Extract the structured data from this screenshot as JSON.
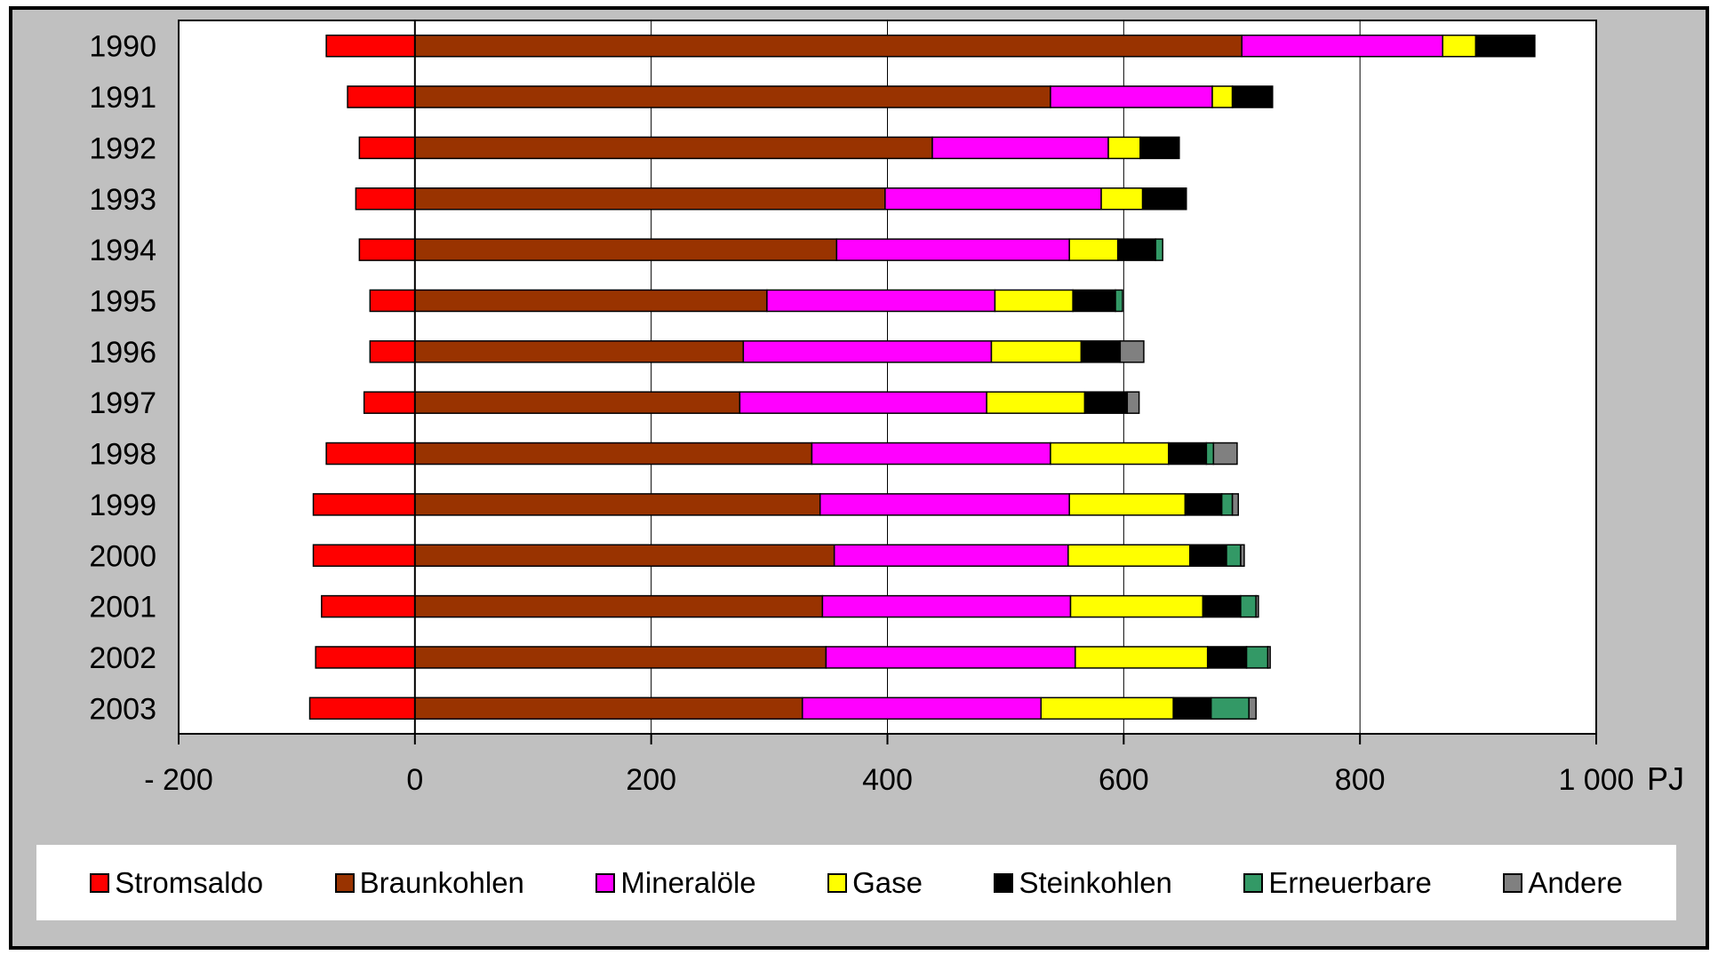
{
  "chart_data": {
    "type": "bar",
    "orientation": "horizontal",
    "stacked": true,
    "unit_label": "PJ",
    "xlim": [
      -200,
      1000
    ],
    "x_ticks": [
      {
        "value": -200,
        "label": "- 200"
      },
      {
        "value": 0,
        "label": "0"
      },
      {
        "value": 200,
        "label": "200"
      },
      {
        "value": 400,
        "label": "400"
      },
      {
        "value": 600,
        "label": "600"
      },
      {
        "value": 800,
        "label": "800"
      },
      {
        "value": 1000,
        "label": "1 000"
      }
    ],
    "grid": "vertical",
    "legend_position": "bottom",
    "categories": [
      "1990",
      "1991",
      "1992",
      "1993",
      "1994",
      "1995",
      "1996",
      "1997",
      "1998",
      "1999",
      "2000",
      "2001",
      "2002",
      "2003"
    ],
    "series": [
      {
        "name": "Stromsaldo",
        "color": "#ff0000",
        "values": [
          -75,
          -57,
          -47,
          -50,
          -47,
          -38,
          -38,
          -43,
          -75,
          -86,
          -86,
          -79,
          -84,
          -89
        ]
      },
      {
        "name": "Braunkohlen",
        "color": "#993300",
        "values": [
          700,
          538,
          438,
          398,
          357,
          298,
          278,
          275,
          336,
          343,
          355,
          345,
          348,
          328
        ]
      },
      {
        "name": "Mineralöle",
        "color": "#ff00ff",
        "values": [
          170,
          137,
          149,
          183,
          197,
          193,
          210,
          209,
          202,
          211,
          198,
          210,
          211,
          202
        ]
      },
      {
        "name": "Gase",
        "color": "#ffff00",
        "values": [
          28,
          17,
          27,
          35,
          41,
          66,
          76,
          83,
          100,
          98,
          103,
          112,
          112,
          112
        ]
      },
      {
        "name": "Steinkohlen",
        "color": "#000000",
        "values": [
          50,
          34,
          33,
          37,
          32,
          36,
          33,
          36,
          32,
          31,
          31,
          32,
          33,
          32
        ]
      },
      {
        "name": "Erneuerbare",
        "color": "#339966",
        "values": [
          0,
          0,
          0,
          0,
          6,
          6,
          0,
          0,
          6,
          9,
          12,
          13,
          18,
          32
        ]
      },
      {
        "name": "Andere",
        "color": "#808080",
        "values": [
          0,
          0,
          0,
          0,
          0,
          0,
          20,
          10,
          20,
          5,
          3,
          2,
          2,
          6
        ]
      }
    ]
  }
}
